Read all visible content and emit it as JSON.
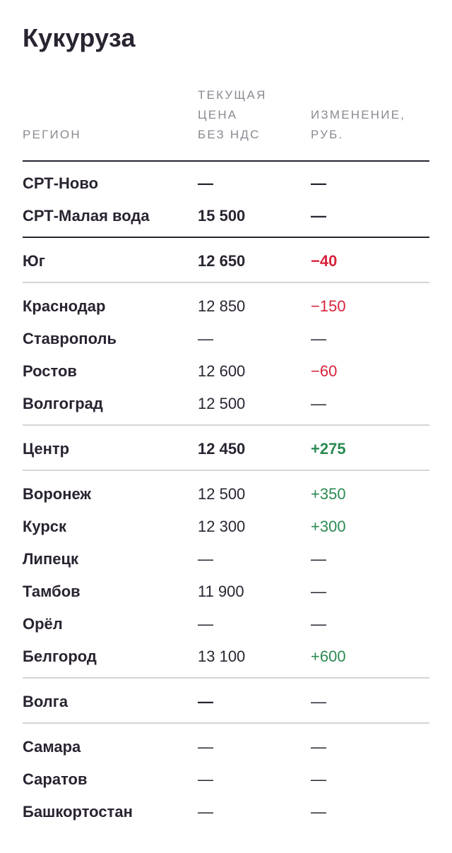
{
  "title": "Кукуруза",
  "headers": {
    "region": "РЕГИОН",
    "price": "ТЕКУЩАЯ\nЦЕНА\nБЕЗ НДС",
    "change": "ИЗМЕНЕНИЕ,\nРУБ."
  },
  "colors": {
    "text": "#2a2431",
    "muted": "#8c8891",
    "negative": "#d8243c",
    "positive": "#2b8a52",
    "divider_light": "#d6d4d8"
  },
  "groups": [
    {
      "separator": "dark",
      "rows": [
        {
          "region": "СРТ-Ново",
          "price": "—",
          "change": "—",
          "bold": true,
          "trend": "neutral"
        },
        {
          "region": "СРТ-Малая вода",
          "price": "15 500",
          "change": "—",
          "bold": true,
          "trend": "neutral"
        }
      ]
    },
    {
      "separator": "light",
      "rows": [
        {
          "region": "Юг",
          "price": "12 650",
          "change": "−40",
          "bold": true,
          "trend": "neg"
        }
      ]
    },
    {
      "separator": "light",
      "rows": [
        {
          "region": "Краснодар",
          "price": "12 850",
          "change": "−150",
          "bold": false,
          "trend": "neg"
        },
        {
          "region": "Ставрополь",
          "price": "—",
          "change": "—",
          "bold": false,
          "trend": "neutral"
        },
        {
          "region": "Ростов",
          "price": "12 600",
          "change": "−60",
          "bold": false,
          "trend": "neg"
        },
        {
          "region": "Волгоград",
          "price": "12 500",
          "change": "—",
          "bold": false,
          "trend": "neutral"
        }
      ]
    },
    {
      "separator": "light",
      "rows": [
        {
          "region": "Центр",
          "price": "12 450",
          "change": "+275",
          "bold": true,
          "trend": "pos"
        }
      ]
    },
    {
      "separator": "light",
      "rows": [
        {
          "region": "Воронеж",
          "price": "12 500",
          "change": "+350",
          "bold": false,
          "trend": "pos"
        },
        {
          "region": "Курск",
          "price": "12 300",
          "change": "+300",
          "bold": false,
          "trend": "pos"
        },
        {
          "region": "Липецк",
          "price": "—",
          "change": "—",
          "bold": false,
          "trend": "neutral"
        },
        {
          "region": "Тамбов",
          "price": "11 900",
          "change": "—",
          "bold": false,
          "trend": "neutral"
        },
        {
          "region": "Орёл",
          "price": "—",
          "change": "—",
          "bold": false,
          "trend": "neutral"
        },
        {
          "region": "Белгород",
          "price": "13 100",
          "change": "+600",
          "bold": false,
          "trend": "pos"
        }
      ]
    },
    {
      "separator": "light",
      "rows": [
        {
          "region": "Волга",
          "price": "—",
          "change": "—",
          "bold": true,
          "trend": "neutral",
          "changeLight": true
        }
      ]
    },
    {
      "separator": "none",
      "rows": [
        {
          "region": "Самара",
          "price": "—",
          "change": "—",
          "bold": false,
          "trend": "neutral"
        },
        {
          "region": "Саратов",
          "price": "—",
          "change": "—",
          "bold": false,
          "trend": "neutral"
        },
        {
          "region": "Башкортостан",
          "price": "—",
          "change": "—",
          "bold": false,
          "trend": "neutral"
        }
      ]
    }
  ]
}
